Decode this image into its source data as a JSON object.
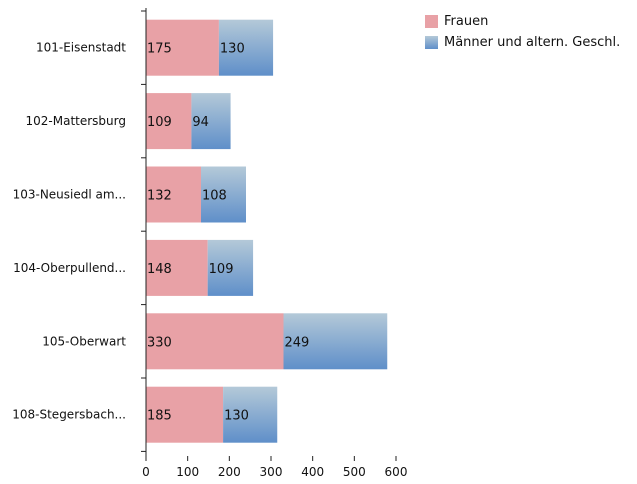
{
  "chart_data": {
    "type": "bar",
    "orientation": "horizontal",
    "stacked": true,
    "categories": [
      "101-Eisenstadt",
      "102-Mattersburg",
      "103-Neusiedl am...",
      "104-Oberpullend...",
      "105-Oberwart",
      "108-Stegersbach..."
    ],
    "series": [
      {
        "name": "Frauen",
        "values": [
          175,
          109,
          132,
          148,
          330,
          185
        ],
        "color": "#e8a1a6"
      },
      {
        "name": "Männer und altern. Geschl.",
        "values": [
          130,
          94,
          108,
          109,
          249,
          130
        ],
        "color": "#8fb1d3",
        "gradient": [
          "#b4c9d8",
          "#5f8fc9"
        ]
      }
    ],
    "xlim": [
      0,
      600
    ],
    "xticks": [
      "0",
      "100",
      "200",
      "300",
      "400",
      "500",
      "600"
    ],
    "grid": false,
    "legend_position": "top-right"
  },
  "legend": {
    "items": [
      {
        "label": "Frauen",
        "color": "#e8a1a6"
      },
      {
        "label": "Männer und altern. Geschl.",
        "color": "#7fa5cf"
      }
    ]
  }
}
